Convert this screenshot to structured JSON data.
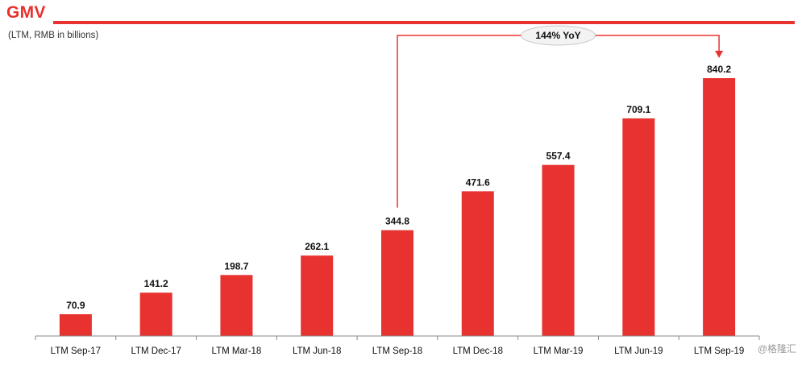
{
  "header": {
    "title": "GMV",
    "subtitle": "(LTM, RMB in billions)"
  },
  "annotation": {
    "label": "144% YoY",
    "from": "LTM Sep-18",
    "to": "LTM Sep-19"
  },
  "watermark": "@格隆汇",
  "colors": {
    "bar": "#e8322f",
    "accent": "#e8322f",
    "axis": "#888888"
  },
  "chart_data": {
    "type": "bar",
    "title": "GMV",
    "subtitle": "(LTM, RMB in billions)",
    "categories": [
      "LTM Sep-17",
      "LTM Dec-17",
      "LTM Mar-18",
      "LTM Jun-18",
      "LTM Sep-18",
      "LTM Dec-18",
      "LTM Mar-19",
      "LTM Jun-19",
      "LTM Sep-19"
    ],
    "values": [
      70.9,
      141.2,
      198.7,
      262.1,
      344.8,
      471.6,
      557.4,
      709.1,
      840.2
    ],
    "labels": [
      "70.9",
      "141.2",
      "198.7",
      "262.1",
      "344.8",
      "471.6",
      "557.4",
      "709.1",
      "840.2"
    ],
    "xlabel": "",
    "ylabel": "",
    "ylim": [
      0,
      840.2
    ],
    "grid": false,
    "legend": "none"
  }
}
